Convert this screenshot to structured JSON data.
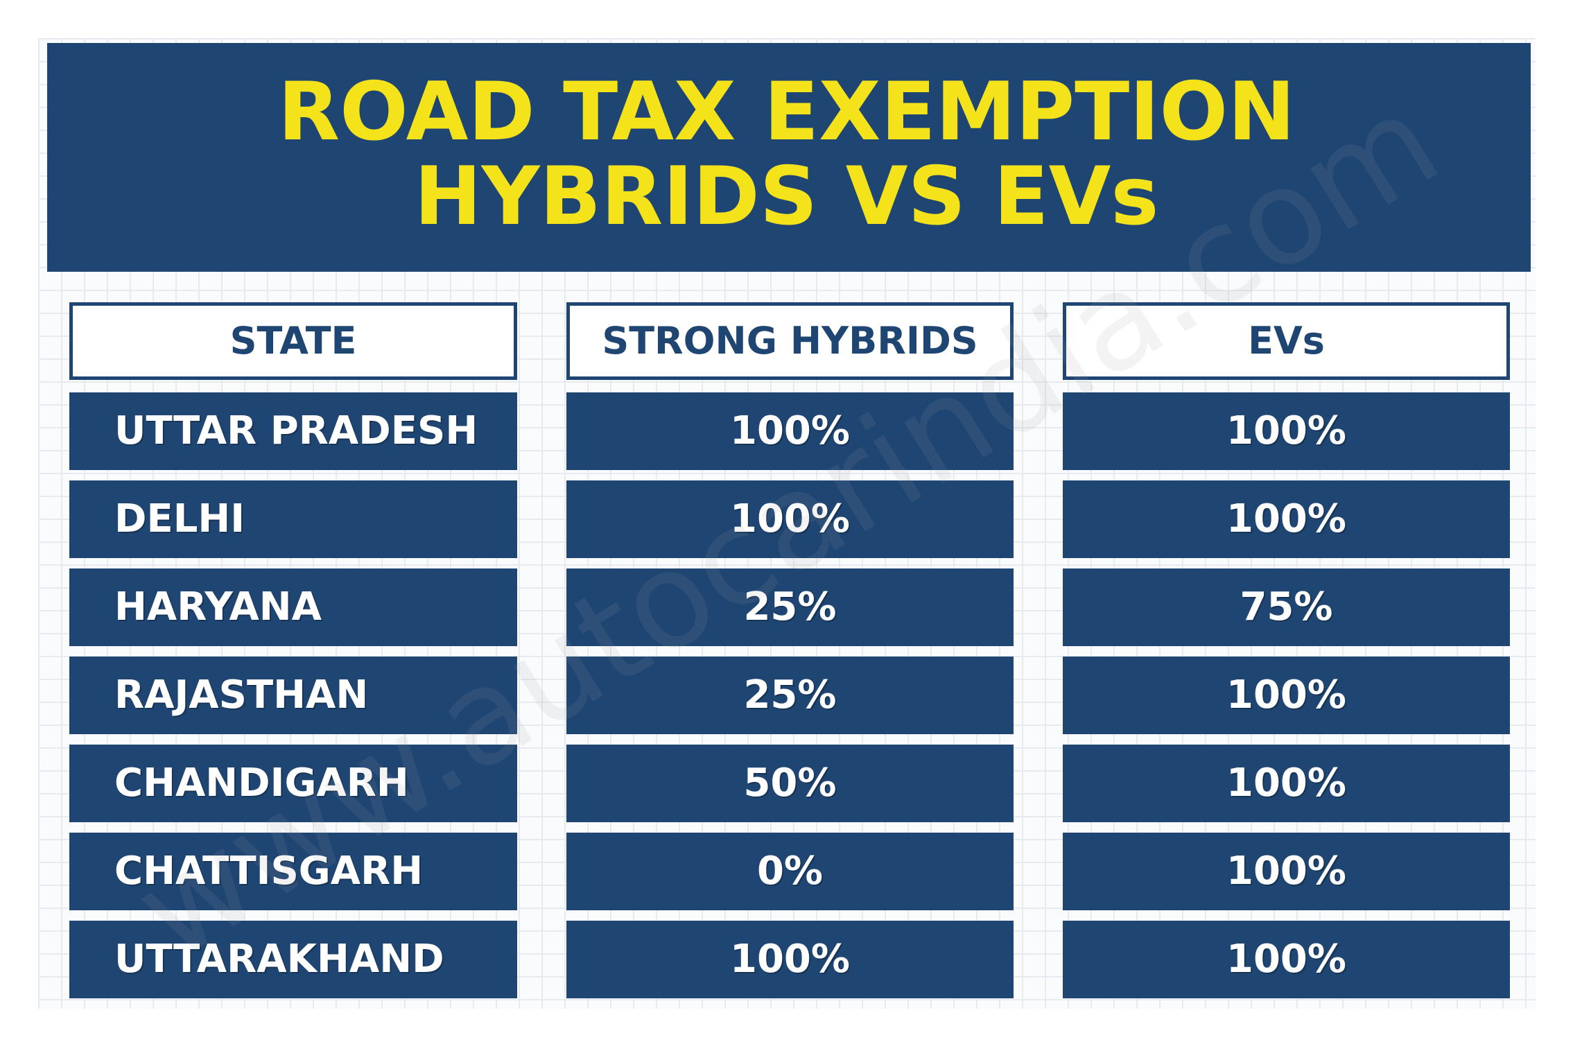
{
  "title": {
    "line1": "ROAD TAX EXEMPTION",
    "line2": "HYBRIDS VS EVs"
  },
  "watermark": "www.autocarindia.com",
  "colors": {
    "navy": "#1f4673",
    "title_yellow": "#f4e21b",
    "white": "#ffffff"
  },
  "chart_data": {
    "type": "table",
    "columns": [
      "STATE",
      "STRONG HYBRIDS",
      "EVs"
    ],
    "rows": [
      {
        "state": "UTTAR PRADESH",
        "strong_hybrids": "100%",
        "evs": "100%"
      },
      {
        "state": "DELHI",
        "strong_hybrids": "100%",
        "evs": "100%"
      },
      {
        "state": "HARYANA",
        "strong_hybrids": "25%",
        "evs": "75%"
      },
      {
        "state": "RAJASTHAN",
        "strong_hybrids": "25%",
        "evs": "100%"
      },
      {
        "state": "CHANDIGARH",
        "strong_hybrids": "50%",
        "evs": "100%"
      },
      {
        "state": "CHATTISGARH",
        "strong_hybrids": "0%",
        "evs": "100%"
      },
      {
        "state": "UTTARAKHAND",
        "strong_hybrids": "100%",
        "evs": "100%"
      }
    ]
  }
}
